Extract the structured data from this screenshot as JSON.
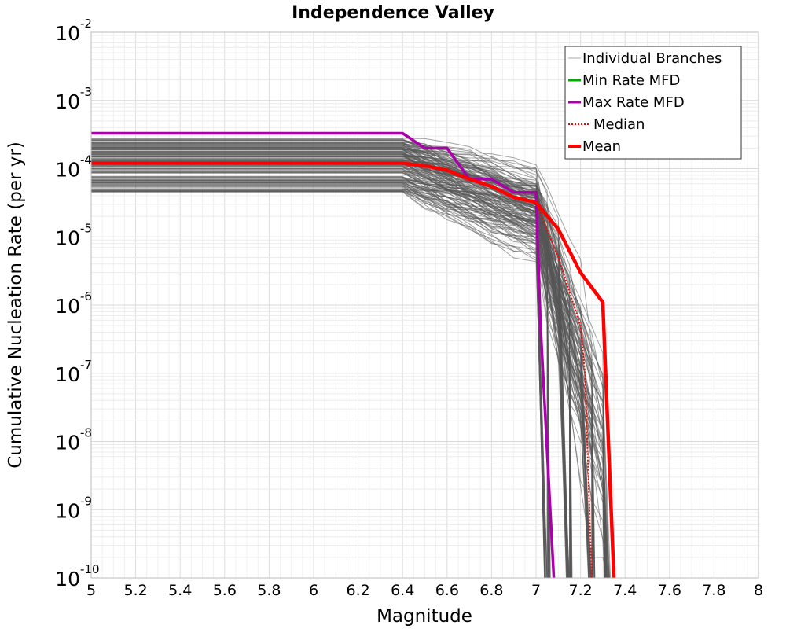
{
  "chart_data": {
    "type": "line",
    "title": "Independence Valley",
    "xlabel": "Magnitude",
    "ylabel": "Cumulative Nucleation Rate (per yr)",
    "xlim": [
      5,
      8
    ],
    "ylim": [
      1e-10,
      0.01
    ],
    "yscale": "log",
    "grid": true,
    "legend_position": "top-right",
    "x_ticks": [
      "5",
      "5.2",
      "5.4",
      "5.6",
      "5.8",
      "6",
      "6.2",
      "6.4",
      "6.6",
      "6.8",
      "7",
      "7.2",
      "7.4",
      "7.6",
      "7.8",
      "8"
    ],
    "y_ticks": [
      {
        "base": "10",
        "exp": "-10",
        "value": 1e-10
      },
      {
        "base": "10",
        "exp": "-9",
        "value": 1e-09
      },
      {
        "base": "10",
        "exp": "-8",
        "value": 1e-08
      },
      {
        "base": "10",
        "exp": "-7",
        "value": 1e-07
      },
      {
        "base": "10",
        "exp": "-6",
        "value": 1e-06
      },
      {
        "base": "10",
        "exp": "-5",
        "value": 1e-05
      },
      {
        "base": "10",
        "exp": "-4",
        "value": 0.0001
      },
      {
        "base": "10",
        "exp": "-3",
        "value": 0.001
      },
      {
        "base": "10",
        "exp": "-2",
        "value": 0.01
      }
    ],
    "branches": {
      "name": "Individual Branches",
      "color": "#555555",
      "rate_range": [
        4.5e-05,
        0.00028
      ],
      "shoulder_start_mag": 6.4,
      "max_mag_clusters": [
        7.05,
        7.15,
        7.25,
        7.32
      ]
    },
    "series": [
      {
        "name": "Min Rate MFD",
        "color": "#00aa00",
        "style": "solid",
        "x": [],
        "y": []
      },
      {
        "name": "Max Rate MFD",
        "color": "#aa00aa",
        "style": "solid",
        "x": [
          5.0,
          6.4,
          6.5,
          6.6,
          6.7,
          6.8,
          6.9,
          7.0,
          7.02,
          7.08
        ],
        "y": [
          0.00033,
          0.00033,
          0.0002,
          0.0002,
          7e-05,
          7e-05,
          4.5e-05,
          4.5e-05,
          5e-07,
          1e-10
        ]
      },
      {
        "name": "Median",
        "color": "#ff0000",
        "style": "dotted",
        "x": [
          5.0,
          6.4,
          6.5,
          6.6,
          6.7,
          6.8,
          6.9,
          7.0,
          7.1,
          7.2,
          7.22,
          7.25
        ],
        "y": [
          0.00012,
          0.00012,
          0.00011,
          9.5e-05,
          7e-05,
          5.5e-05,
          3.8e-05,
          3.2e-05,
          5e-06,
          5e-07,
          1e-07,
          1e-10
        ]
      },
      {
        "name": "Mean",
        "color": "#ff0000",
        "style": "solid",
        "x": [
          5.0,
          6.4,
          6.5,
          6.6,
          6.7,
          6.8,
          6.9,
          7.0,
          7.1,
          7.2,
          7.3,
          7.35
        ],
        "y": [
          0.00012,
          0.00012,
          0.00011,
          9.5e-05,
          7e-05,
          5.5e-05,
          3.8e-05,
          3.2e-05,
          1.3e-05,
          3e-06,
          1.1e-06,
          1e-10
        ]
      }
    ],
    "legend": [
      {
        "label": "Individual Branches",
        "color": "#aaaaaa",
        "style": "thin"
      },
      {
        "label": "Min Rate MFD",
        "color": "#00aa00",
        "style": "solid"
      },
      {
        "label": "Max Rate MFD",
        "color": "#aa00aa",
        "style": "solid"
      },
      {
        "label": "Median",
        "color": "#ff0000",
        "style": "dotted"
      },
      {
        "label": "Mean",
        "color": "#ff0000",
        "style": "thick"
      }
    ]
  }
}
